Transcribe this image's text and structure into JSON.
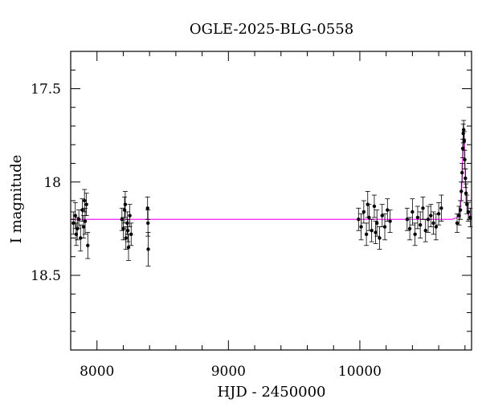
{
  "chart_data": {
    "type": "scatter",
    "title": "OGLE-2025-BLG-0558",
    "xlabel": "HJD - 2450000",
    "ylabel": "I magnitude",
    "xlim": [
      7800,
      10850
    ],
    "ylim": [
      18.9,
      17.3
    ],
    "y_inverted": true,
    "grid": false,
    "xticks_major": [
      8000,
      9000,
      10000
    ],
    "xtick_labels": [
      "8000",
      "9000",
      "10000"
    ],
    "yticks_major": [
      17.5,
      18,
      18.5
    ],
    "ytick_labels": [
      "17.5",
      "18",
      "18.5"
    ],
    "baseline_magnitude": 18.2,
    "colors": {
      "data": "#000000",
      "model": "#ff33ff",
      "frame": "#000000"
    },
    "series": [
      {
        "kind": "observations",
        "points": [
          [
            7820,
            18.22,
            0.06
          ],
          [
            7835,
            18.18,
            0.07
          ],
          [
            7850,
            18.25,
            0.06
          ],
          [
            7862,
            18.2,
            0.05
          ],
          [
            7875,
            18.3,
            0.07
          ],
          [
            7888,
            18.15,
            0.06
          ],
          [
            7898,
            18.24,
            0.06
          ],
          [
            7910,
            18.21,
            0.07
          ],
          [
            7920,
            18.12,
            0.06
          ],
          [
            7930,
            18.34,
            0.07
          ],
          [
            7842,
            18.28,
            0.06
          ],
          [
            7905,
            18.1,
            0.06
          ],
          [
            8190,
            18.2,
            0.06
          ],
          [
            8200,
            18.25,
            0.06
          ],
          [
            8210,
            18.15,
            0.07
          ],
          [
            8220,
            18.3,
            0.06
          ],
          [
            8230,
            18.22,
            0.06
          ],
          [
            8240,
            18.35,
            0.07
          ],
          [
            8250,
            18.18,
            0.06
          ],
          [
            8260,
            18.28,
            0.06
          ],
          [
            8215,
            18.12,
            0.07
          ],
          [
            8235,
            18.26,
            0.06
          ],
          [
            8385,
            18.14,
            0.06
          ],
          [
            8388,
            18.22,
            0.07
          ],
          [
            8390,
            18.36,
            0.09
          ],
          [
            9990,
            18.2,
            0.06
          ],
          [
            10010,
            18.24,
            0.07
          ],
          [
            10030,
            18.16,
            0.06
          ],
          [
            10050,
            18.28,
            0.06
          ],
          [
            10070,
            18.19,
            0.07
          ],
          [
            10090,
            18.26,
            0.06
          ],
          [
            10110,
            18.13,
            0.06
          ],
          [
            10130,
            18.22,
            0.07
          ],
          [
            10150,
            18.3,
            0.06
          ],
          [
            10170,
            18.18,
            0.06
          ],
          [
            10190,
            18.24,
            0.07
          ],
          [
            10210,
            18.15,
            0.06
          ],
          [
            10230,
            18.21,
            0.06
          ],
          [
            10060,
            18.12,
            0.07
          ],
          [
            10120,
            18.27,
            0.06
          ],
          [
            10360,
            18.2,
            0.06
          ],
          [
            10380,
            18.25,
            0.06
          ],
          [
            10400,
            18.16,
            0.07
          ],
          [
            10420,
            18.28,
            0.06
          ],
          [
            10440,
            18.19,
            0.06
          ],
          [
            10460,
            18.23,
            0.07
          ],
          [
            10480,
            18.14,
            0.06
          ],
          [
            10500,
            18.26,
            0.06
          ],
          [
            10520,
            18.2,
            0.07
          ],
          [
            10540,
            18.18,
            0.06
          ],
          [
            10560,
            18.22,
            0.06
          ],
          [
            10580,
            18.24,
            0.07
          ],
          [
            10600,
            18.17,
            0.06
          ],
          [
            10620,
            18.14,
            0.07
          ],
          [
            10740,
            18.22,
            0.05
          ],
          [
            10755,
            18.18,
            0.05
          ],
          [
            10765,
            18.15,
            0.05
          ],
          [
            10772,
            18.05,
            0.05
          ],
          [
            10778,
            17.95,
            0.05
          ],
          [
            10783,
            17.82,
            0.05
          ],
          [
            10787,
            17.74,
            0.05
          ],
          [
            10790,
            17.72,
            0.05
          ],
          [
            10794,
            17.78,
            0.05
          ],
          [
            10798,
            17.88,
            0.05
          ],
          [
            10803,
            17.98,
            0.05
          ],
          [
            10808,
            18.06,
            0.05
          ],
          [
            10815,
            18.12,
            0.05
          ],
          [
            10825,
            18.16,
            0.05
          ],
          [
            10840,
            18.19,
            0.05
          ]
        ]
      },
      {
        "kind": "model",
        "points": [
          [
            7800,
            18.2
          ],
          [
            10700,
            18.2
          ],
          [
            10740,
            18.19
          ],
          [
            10760,
            18.16
          ],
          [
            10770,
            18.1
          ],
          [
            10778,
            17.98
          ],
          [
            10784,
            17.84
          ],
          [
            10788,
            17.76
          ],
          [
            10790,
            17.74
          ],
          [
            10793,
            17.76
          ],
          [
            10798,
            17.86
          ],
          [
            10805,
            18.0
          ],
          [
            10812,
            18.1
          ],
          [
            10822,
            18.16
          ],
          [
            10835,
            18.19
          ],
          [
            10850,
            18.2
          ]
        ]
      }
    ]
  }
}
